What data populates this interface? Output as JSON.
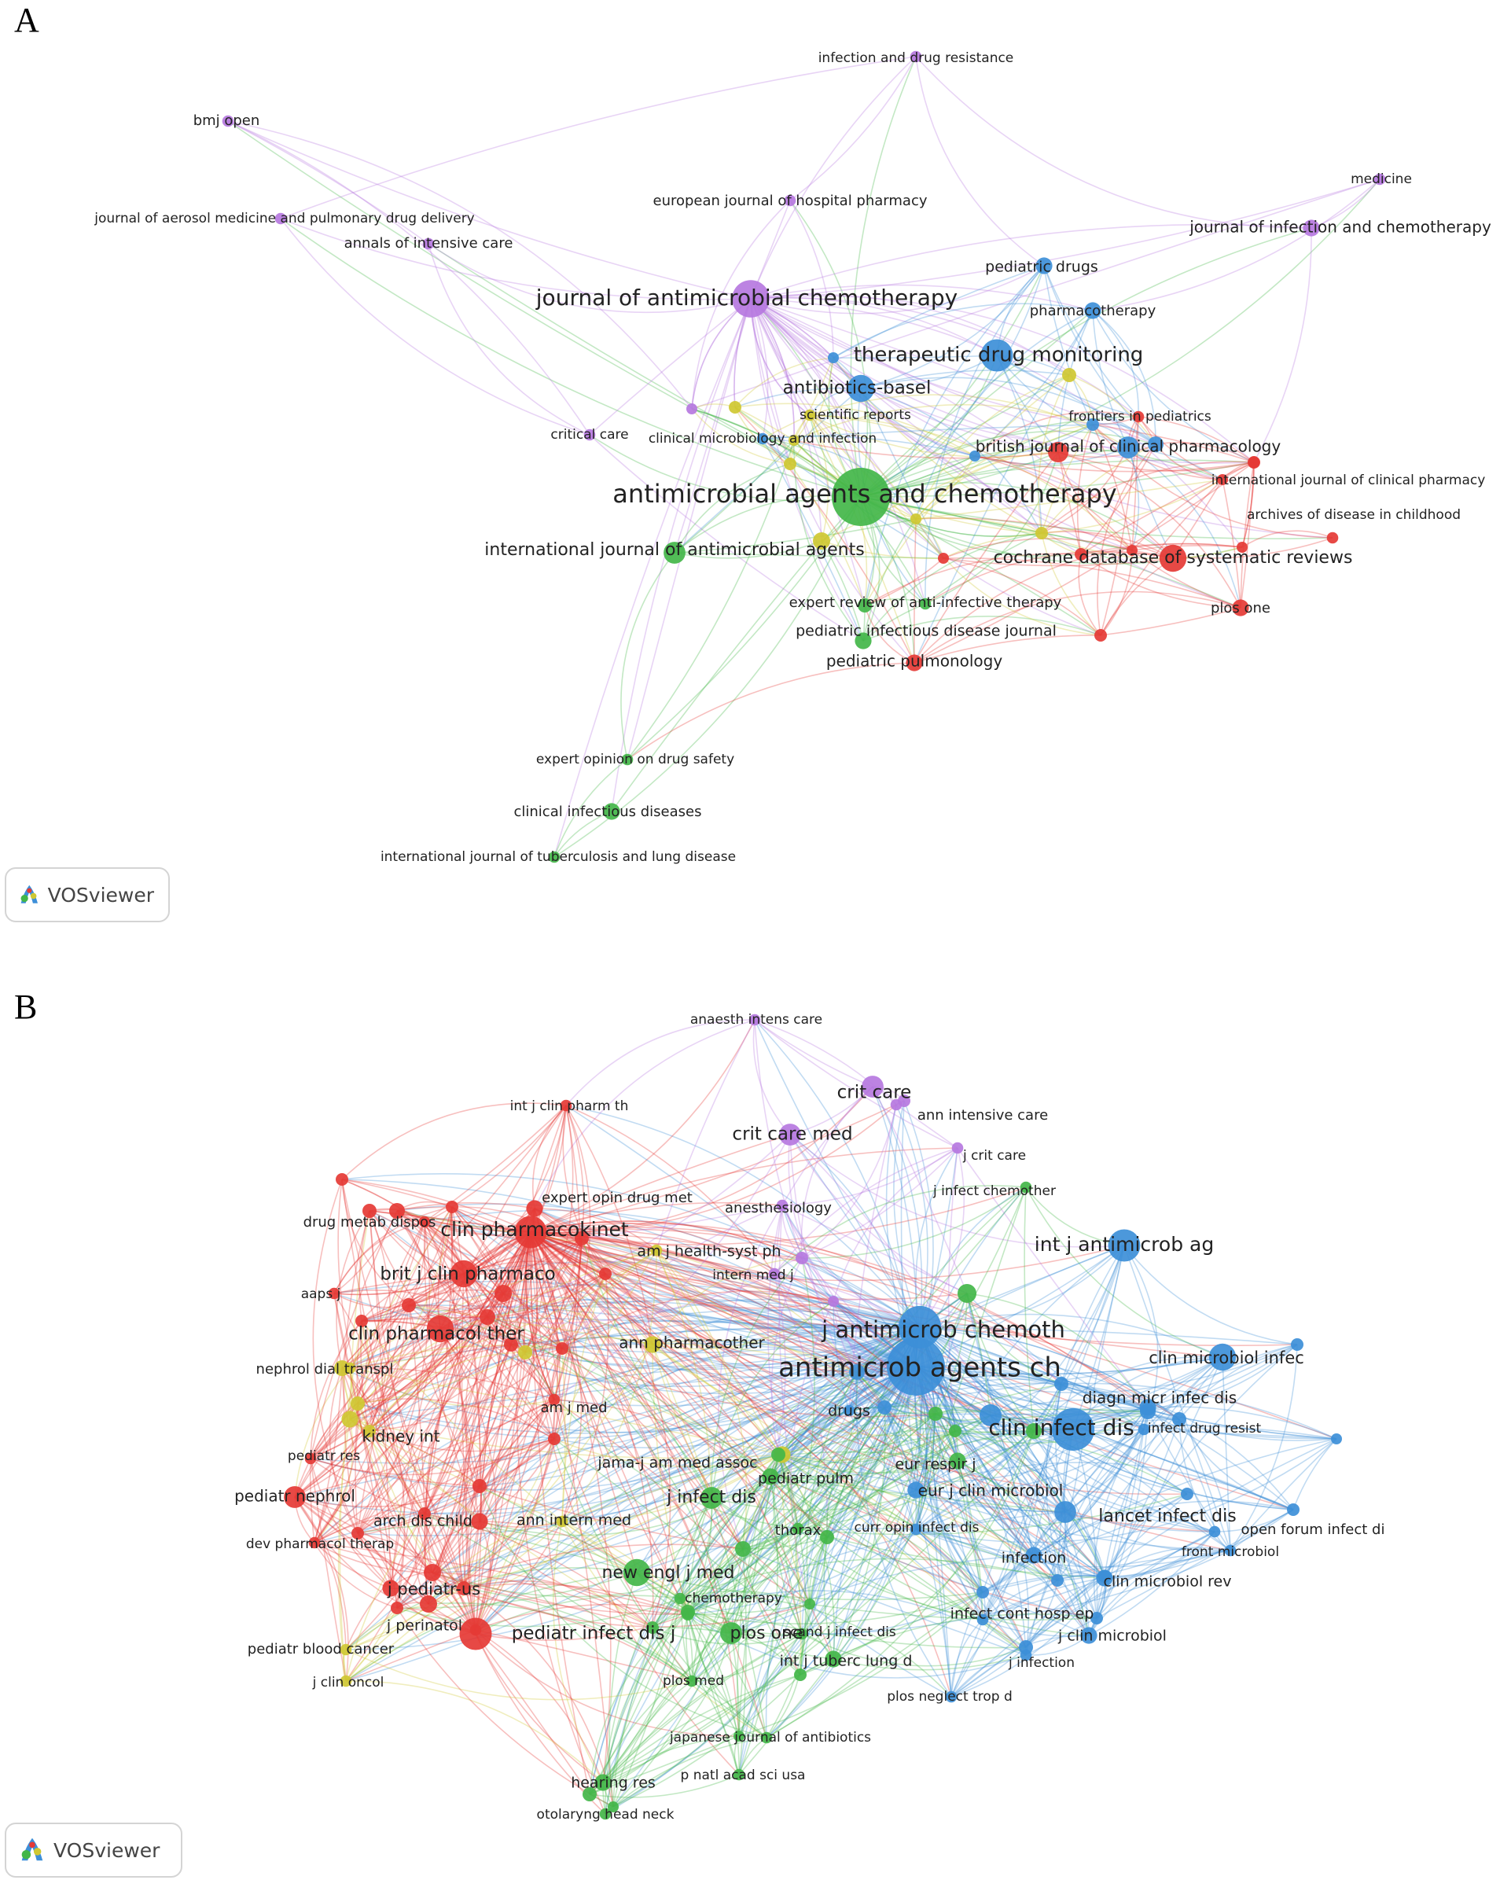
{
  "panels": [
    {
      "letter": "A",
      "footer_logo_text": "VOSviewer",
      "clusters": {
        "red": "#e53935",
        "green": "#43b649",
        "blue": "#3d8fd8",
        "yellow": "#cfc832",
        "purple": "#b678e0"
      },
      "nodes": [
        {
          "label": "infection and drug resistance",
          "cluster": "purple",
          "weight": 1
        },
        {
          "label": "bmj open",
          "cluster": "purple",
          "weight": 1
        },
        {
          "label": "medicine",
          "cluster": "purple",
          "weight": 1
        },
        {
          "label": "european journal of hospital pharmacy",
          "cluster": "purple",
          "weight": 1
        },
        {
          "label": "journal of infection and chemotherapy",
          "cluster": "purple",
          "weight": 2
        },
        {
          "label": "journal of aerosol medicine and pulmonary drug delivery",
          "cluster": "purple",
          "weight": 1
        },
        {
          "label": "annals of intensive care",
          "cluster": "purple",
          "weight": 1
        },
        {
          "label": "pediatric drugs",
          "cluster": "blue",
          "weight": 2
        },
        {
          "label": "journal of antimicrobial chemotherapy",
          "cluster": "purple",
          "weight": 6
        },
        {
          "label": "pharmacotherapy",
          "cluster": "blue",
          "weight": 2
        },
        {
          "label": "therapeutic drug monitoring",
          "cluster": "blue",
          "weight": 5
        },
        {
          "label": "antibiotics-basel",
          "cluster": "blue",
          "weight": 4
        },
        {
          "label": "scientific reports",
          "cluster": "yellow",
          "weight": 1
        },
        {
          "label": "frontiers in pediatrics",
          "cluster": "red",
          "weight": 1
        },
        {
          "label": "critical care",
          "cluster": "purple",
          "weight": 1
        },
        {
          "label": "clinical microbiology and infection",
          "cluster": "blue",
          "weight": 1
        },
        {
          "label": "british journal of clinical pharmacology",
          "cluster": "blue",
          "weight": 3
        },
        {
          "label": "international journal of clinical pharmacy",
          "cluster": "red",
          "weight": 1
        },
        {
          "label": "antimicrobial agents and chemotherapy",
          "cluster": "green",
          "weight": 10
        },
        {
          "label": "archives of disease in childhood",
          "cluster": "red",
          "weight": 1
        },
        {
          "label": "international journal of antimicrobial agents",
          "cluster": "green",
          "weight": 3
        },
        {
          "label": "cochrane database of systematic reviews",
          "cluster": "red",
          "weight": 4
        },
        {
          "label": "expert review of anti-infective therapy",
          "cluster": "green",
          "weight": 1
        },
        {
          "label": "plos one",
          "cluster": "red",
          "weight": 2
        },
        {
          "label": "pediatric infectious disease journal",
          "cluster": "green",
          "weight": 2
        },
        {
          "label": "pediatric pulmonology",
          "cluster": "red",
          "weight": 2
        },
        {
          "label": "expert opinion on drug safety",
          "cluster": "green",
          "weight": 1
        },
        {
          "label": "clinical infectious diseases",
          "cluster": "green",
          "weight": 2
        },
        {
          "label": "international journal of tuberculosis and lung disease",
          "cluster": "green",
          "weight": 1
        }
      ]
    },
    {
      "letter": "B",
      "footer_logo_text": "VOSviewer",
      "clusters": {
        "red": "#e53935",
        "green": "#43b649",
        "blue": "#3d8fd8",
        "yellow": "#cfc832",
        "purple": "#b678e0"
      },
      "nodes": [
        {
          "label": "anaesth intens care",
          "cluster": "purple",
          "weight": 1
        },
        {
          "label": "int j clin pharm th",
          "cluster": "red",
          "weight": 1
        },
        {
          "label": "crit care",
          "cluster": "purple",
          "weight": 3
        },
        {
          "label": "ann intensive care",
          "cluster": "purple",
          "weight": 1
        },
        {
          "label": "crit care med",
          "cluster": "purple",
          "weight": 3
        },
        {
          "label": "j crit care",
          "cluster": "purple",
          "weight": 1
        },
        {
          "label": "j infect chemother",
          "cluster": "green",
          "weight": 1
        },
        {
          "label": "expert opin drug met",
          "cluster": "red",
          "weight": 2
        },
        {
          "label": "anesthesiology",
          "cluster": "purple",
          "weight": 1
        },
        {
          "label": "drug metab dispos",
          "cluster": "red",
          "weight": 1
        },
        {
          "label": "clin pharmacokinet",
          "cluster": "red",
          "weight": 5
        },
        {
          "label": "am j health-syst ph",
          "cluster": "yellow",
          "weight": 1
        },
        {
          "label": "int j antimicrob ag",
          "cluster": "blue",
          "weight": 5
        },
        {
          "label": "brit j clin pharmaco",
          "cluster": "red",
          "weight": 4
        },
        {
          "label": "intern med j",
          "cluster": "purple",
          "weight": 1
        },
        {
          "label": "aaps j",
          "cluster": "red",
          "weight": 1
        },
        {
          "label": "j antimicrob chemoth",
          "cluster": "blue",
          "weight": 7
        },
        {
          "label": "clin pharmacol ther",
          "cluster": "red",
          "weight": 4
        },
        {
          "label": "ann pharmacother",
          "cluster": "yellow",
          "weight": 2
        },
        {
          "label": "antimicrob agents ch",
          "cluster": "blue",
          "weight": 10
        },
        {
          "label": "clin microbiol infec",
          "cluster": "blue",
          "weight": 4
        },
        {
          "label": "nephrol dial transpl",
          "cluster": "yellow",
          "weight": 1
        },
        {
          "label": "am j med",
          "cluster": "red",
          "weight": 1
        },
        {
          "label": "drugs",
          "cluster": "blue",
          "weight": 1
        },
        {
          "label": "diagn micr infec dis",
          "cluster": "blue",
          "weight": 2
        },
        {
          "label": "kidney int",
          "cluster": "yellow",
          "weight": 2
        },
        {
          "label": "clin infect dis",
          "cluster": "blue",
          "weight": 7
        },
        {
          "label": "infect drug resist",
          "cluster": "blue",
          "weight": 1
        },
        {
          "label": "pediatr res",
          "cluster": "red",
          "weight": 1
        },
        {
          "label": "jama-j am med assoc",
          "cluster": "yellow",
          "weight": 2
        },
        {
          "label": "eur respir j",
          "cluster": "green",
          "weight": 2
        },
        {
          "label": "pediatr pulm",
          "cluster": "green",
          "weight": 2
        },
        {
          "label": "pediatr nephrol",
          "cluster": "red",
          "weight": 3
        },
        {
          "label": "j infect dis",
          "cluster": "green",
          "weight": 3
        },
        {
          "label": "eur j clin microbiol",
          "cluster": "blue",
          "weight": 2
        },
        {
          "label": "arch dis child",
          "cluster": "red",
          "weight": 2
        },
        {
          "label": "ann intern med",
          "cluster": "yellow",
          "weight": 1
        },
        {
          "label": "lancet infect dis",
          "cluster": "blue",
          "weight": 3
        },
        {
          "label": "open forum infect di",
          "cluster": "blue",
          "weight": 1
        },
        {
          "label": "thorax",
          "cluster": "green",
          "weight": 1
        },
        {
          "label": "curr opin infect dis",
          "cluster": "blue",
          "weight": 1
        },
        {
          "label": "dev pharmacol therap",
          "cluster": "red",
          "weight": 1
        },
        {
          "label": "front microbiol",
          "cluster": "blue",
          "weight": 1
        },
        {
          "label": "infection",
          "cluster": "blue",
          "weight": 2
        },
        {
          "label": "new engl j med",
          "cluster": "green",
          "weight": 4
        },
        {
          "label": "clin microbiol rev",
          "cluster": "blue",
          "weight": 2
        },
        {
          "label": "j pediatr-us",
          "cluster": "red",
          "weight": 2
        },
        {
          "label": "chemotherapy",
          "cluster": "green",
          "weight": 1
        },
        {
          "label": "infect cont hosp ep",
          "cluster": "blue",
          "weight": 1
        },
        {
          "label": "j perinatol",
          "cluster": "red",
          "weight": 1
        },
        {
          "label": "pediatr infect dis j",
          "cluster": "red",
          "weight": 5
        },
        {
          "label": "plos one",
          "cluster": "green",
          "weight": 3
        },
        {
          "label": "scand j infect dis",
          "cluster": "green",
          "weight": 1
        },
        {
          "label": "j clin microbiol",
          "cluster": "blue",
          "weight": 2
        },
        {
          "label": "pediatr blood cancer",
          "cluster": "yellow",
          "weight": 1
        },
        {
          "label": "int j tuberc lung d",
          "cluster": "green",
          "weight": 2
        },
        {
          "label": "j infection",
          "cluster": "blue",
          "weight": 1
        },
        {
          "label": "j clin oncol",
          "cluster": "yellow",
          "weight": 1
        },
        {
          "label": "plos med",
          "cluster": "green",
          "weight": 1
        },
        {
          "label": "plos neglect trop d",
          "cluster": "blue",
          "weight": 1
        },
        {
          "label": "japanese journal of antibiotics",
          "cluster": "green",
          "weight": 1
        },
        {
          "label": "hearing res",
          "cluster": "green",
          "weight": 2
        },
        {
          "label": "p natl acad sci usa",
          "cluster": "green",
          "weight": 1
        },
        {
          "label": "otolaryng head neck",
          "cluster": "green",
          "weight": 1
        }
      ]
    }
  ]
}
